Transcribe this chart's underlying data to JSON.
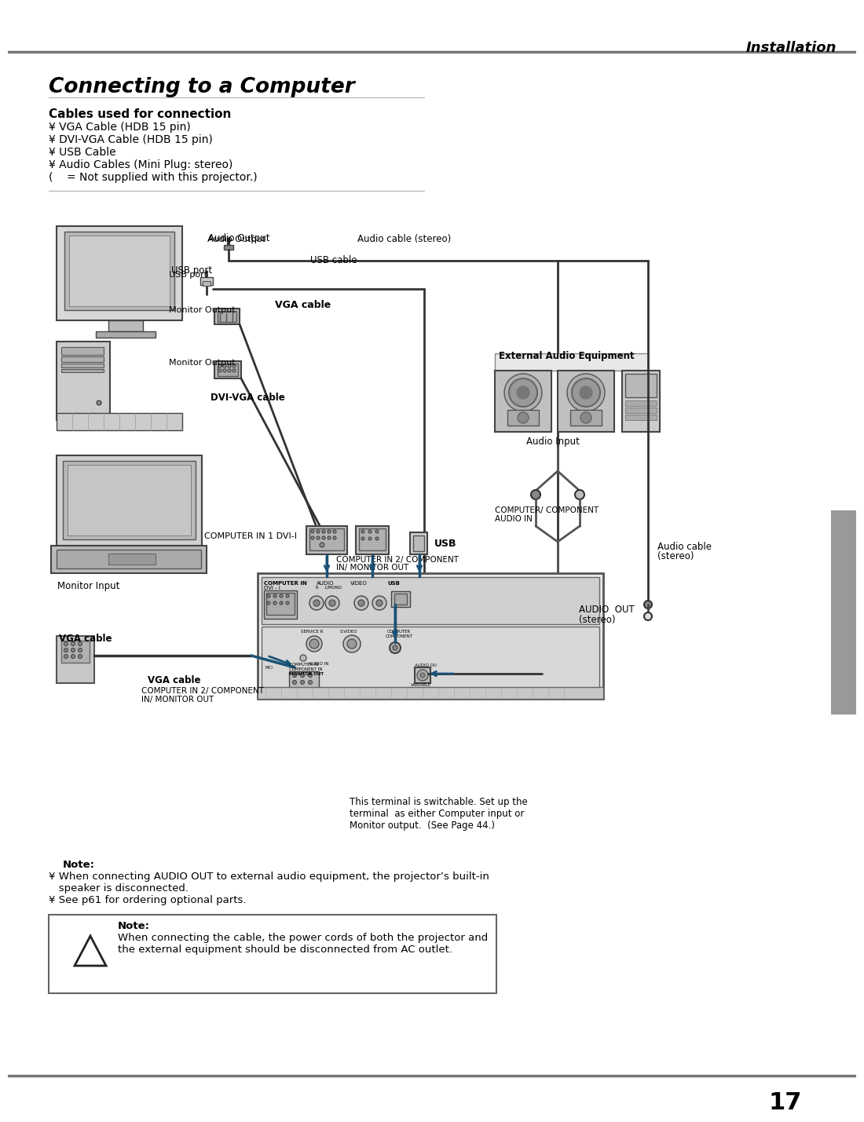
{
  "page_title": "Installation",
  "section_title": "Connecting to a Computer",
  "subsection_title": "Cables used for connection",
  "cable_list": [
    "¥ VGA Cable (HDB 15 pin)",
    "¥ DVI-VGA Cable (HDB 15 pin)",
    "¥ USB Cable",
    "¥ Audio Cables (Mini Plug: stereo)",
    "(    = Not supplied with this projector.)"
  ],
  "page_number": "17",
  "note1_label": "Note:",
  "note1_line1": "¥ When connecting AUDIO OUT to external audio equipment, the projector’s built-in",
  "note1_line2": "   speaker is disconnected.",
  "note1_line3": "¥ See p61 for ordering optional parts.",
  "caution_title": "Note:",
  "caution_line1": "When connecting the cable, the power cords of both the projector and",
  "caution_line2": "the external equipment should be disconnected from AC outlet.",
  "lbl_audio_output": "Audio Output",
  "lbl_audio_cable_stereo": "Audio cable (stereo)",
  "lbl_usb_port": "USB port",
  "lbl_usb_cable": "USB cable",
  "lbl_vga_cable_top": "VGA cable",
  "lbl_monitor_out1": "Monitor Output",
  "lbl_monitor_out2": "Monitor Output",
  "lbl_dvi_vga_cable": "DVI-VGA cable",
  "lbl_monitor_input": "Monitor Input",
  "lbl_ext_audio": "External Audio Equipment",
  "lbl_audio_input": "Audio Input",
  "lbl_comp_in1": "COMPUTER IN 1 DVI-I",
  "lbl_comp_in2_top": "COMPUTER IN 2/ COMPONENT",
  "lbl_comp_in2_top2": "IN/ MONITOR OUT",
  "lbl_usb": "USB",
  "lbl_comp_audio_in1": "COMPUTER/ COMPONENT",
  "lbl_comp_audio_in2": "AUDIO IN",
  "lbl_audio_cable_right1": "Audio cable",
  "lbl_audio_cable_right2": "(stereo)",
  "lbl_audio_out1": "AUDIO  OUT",
  "lbl_audio_out2": "(stereo)",
  "lbl_vga_cable_bot": "VGA cable",
  "lbl_comp_in2_bot1": "COMPUTER IN 2/ COMPONENT",
  "lbl_comp_in2_bot2": "IN/ MONITOR OUT",
  "lbl_terminal_note": "This terminal is switchable. Set up the\nterminal  as either Computer input or\nMonitor output.  (See Page 44.)",
  "bg_color": "#ffffff",
  "header_line_color": "#777777",
  "sidebar_color": "#999999"
}
